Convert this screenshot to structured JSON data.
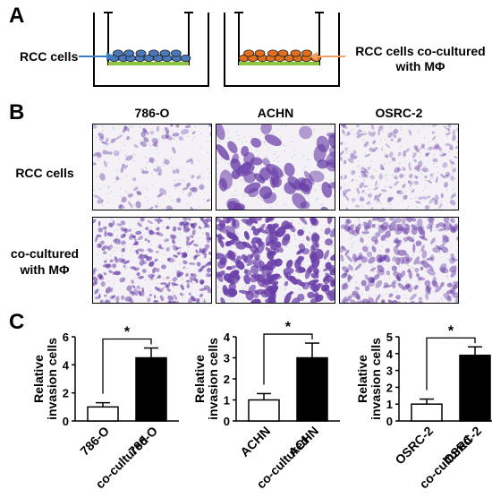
{
  "panels": {
    "a": {
      "letter": "A",
      "left_label": "RCC cells",
      "right_label_line1": "RCC cells co-cultured",
      "right_label_line2": "with MΦ",
      "colors": {
        "rcc_cells": "#4a78b8",
        "co_cultured_cells": "#e0701e",
        "membrane": "#8cc63f",
        "left_arrow": "#3a7fc4",
        "right_arrow": "#f0a060"
      }
    },
    "b": {
      "letter": "B",
      "columns": [
        "786-O",
        "ACHN",
        "OSRC-2"
      ],
      "rows": [
        {
          "line1": "RCC cells",
          "line2": ""
        },
        {
          "line1": "co-cultured",
          "line2": "with MΦ"
        }
      ],
      "stain_color": "#6a3fa8"
    },
    "c": {
      "letter": "C"
    }
  },
  "chart_data": [
    {
      "type": "bar",
      "categories": [
        "786-O",
        "co-cultured 786-O"
      ],
      "values": [
        1.0,
        4.5
      ],
      "errors": [
        0.3,
        0.7
      ],
      "ylabel_line1": "Relative",
      "ylabel_line2": "invasion cells",
      "ylim": [
        0,
        6
      ],
      "yticks": [
        "0",
        "2",
        "4",
        "6"
      ],
      "significance": "*",
      "bar_colors": [
        "#ffffff",
        "#000000"
      ],
      "xtick_lines": [
        [
          "786-O"
        ],
        [
          "co-cultured",
          "786-O"
        ]
      ]
    },
    {
      "type": "bar",
      "categories": [
        "ACHN",
        "co-cultured ACHN"
      ],
      "values": [
        1.0,
        3.0
      ],
      "errors": [
        0.3,
        0.7
      ],
      "ylabel_line1": "Relative",
      "ylabel_line2": "invasion cells",
      "ylim": [
        0,
        4
      ],
      "yticks": [
        "0",
        "1",
        "2",
        "3",
        "4"
      ],
      "significance": "*",
      "bar_colors": [
        "#ffffff",
        "#000000"
      ],
      "xtick_lines": [
        [
          "ACHN"
        ],
        [
          "co-cultured",
          "ACHN"
        ]
      ]
    },
    {
      "type": "bar",
      "categories": [
        "OSRC-2",
        "co-cultured OSRC-2"
      ],
      "values": [
        1.0,
        3.9
      ],
      "errors": [
        0.3,
        0.5
      ],
      "ylabel_line1": "Relative",
      "ylabel_line2": "invasion cells",
      "ylim": [
        0,
        5
      ],
      "yticks": [
        "0",
        "1",
        "2",
        "3",
        "4",
        "5"
      ],
      "significance": "*",
      "bar_colors": [
        "#ffffff",
        "#000000"
      ],
      "xtick_lines": [
        [
          "OSRC-2"
        ],
        [
          "co-cultured",
          "OSRC-2"
        ]
      ]
    }
  ]
}
